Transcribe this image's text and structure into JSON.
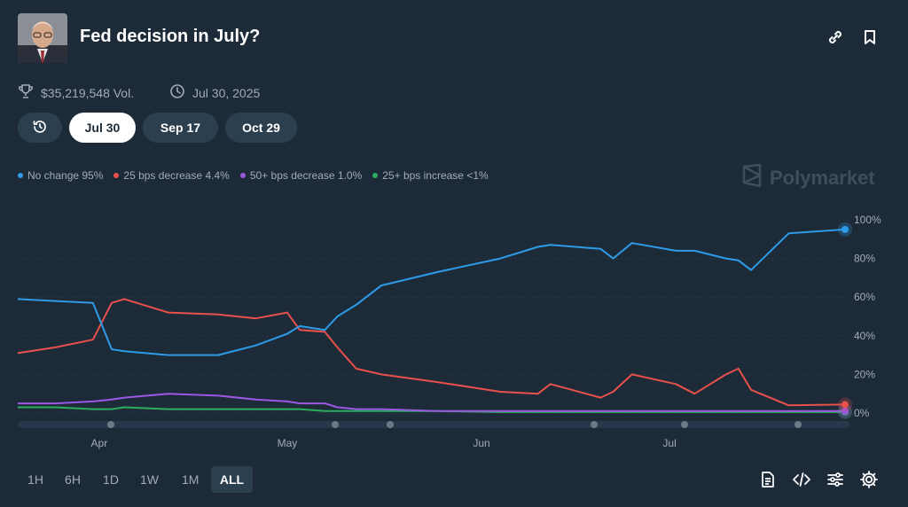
{
  "header": {
    "title": "Fed decision in July?",
    "volume": "$35,219,548 Vol.",
    "date": "Jul 30, 2025"
  },
  "date_tabs": [
    {
      "label": "Jul 30",
      "active": true
    },
    {
      "label": "Sep 17",
      "active": false
    },
    {
      "label": "Oct 29",
      "active": false
    }
  ],
  "brand": "Polymarket",
  "icons": {
    "link": "link-icon",
    "bookmark": "bookmark-icon",
    "trophy": "trophy-icon",
    "clock": "clock-icon",
    "history": "history-icon",
    "document": "document-icon",
    "embed": "code-icon",
    "filters": "sliders-icon",
    "settings": "gear-icon"
  },
  "timeframes": [
    {
      "label": "1H",
      "active": false
    },
    {
      "label": "6H",
      "active": false
    },
    {
      "label": "1D",
      "active": false
    },
    {
      "label": "1W",
      "active": false
    },
    {
      "label": "1M",
      "active": false
    },
    {
      "label": "ALL",
      "active": true
    }
  ],
  "chart_data": {
    "type": "line",
    "title": "",
    "xlabel": "",
    "ylabel": "",
    "ylim": [
      0,
      100
    ],
    "xlim": [
      "2025-03-19",
      "2025-07-29"
    ],
    "y_ticks": [
      "100%",
      "80%",
      "60%",
      "40%",
      "20%",
      "0%"
    ],
    "x_ticks": [
      "Apr",
      "May",
      "Jun",
      "Jul"
    ],
    "grid": true,
    "legend_position": "top-left",
    "x": [
      "2025-03-19",
      "2025-03-25",
      "2025-03-31",
      "2025-04-03",
      "2025-04-05",
      "2025-04-12",
      "2025-04-20",
      "2025-04-26",
      "2025-05-01",
      "2025-05-03",
      "2025-05-07",
      "2025-05-09",
      "2025-05-12",
      "2025-05-16",
      "2025-05-25",
      "2025-06-04",
      "2025-06-10",
      "2025-06-12",
      "2025-06-20",
      "2025-06-22",
      "2025-06-25",
      "2025-07-02",
      "2025-07-05",
      "2025-07-10",
      "2025-07-12",
      "2025-07-14",
      "2025-07-20",
      "2025-07-29"
    ],
    "series": [
      {
        "name": "No change",
        "label": "No change 95%",
        "color": "#2e9be8",
        "values": [
          59,
          58,
          57,
          33,
          32,
          30,
          30,
          35,
          41,
          45,
          43,
          50,
          56,
          66,
          73,
          80,
          86,
          87,
          85,
          80,
          88,
          84,
          84,
          80,
          79,
          74,
          93,
          95
        ]
      },
      {
        "name": "25 bps decrease",
        "label": "25 bps decrease 4.4%",
        "color": "#e8504c",
        "values": [
          31,
          34,
          38,
          57,
          59,
          52,
          51,
          49,
          52,
          43,
          42,
          34,
          23,
          20,
          16,
          11,
          10,
          15,
          8,
          11,
          20,
          15,
          10,
          20,
          23,
          12,
          4,
          4.4
        ]
      },
      {
        "name": "50+ bps decrease",
        "label": "50+ bps decrease 1.0%",
        "color": "#9a58e3",
        "values": [
          5,
          5,
          6,
          7,
          8,
          10,
          9,
          7,
          6,
          5,
          5,
          3,
          2,
          2,
          1,
          1,
          1,
          1,
          1,
          1,
          1,
          1,
          1,
          1,
          1,
          1,
          1,
          1.0
        ]
      },
      {
        "name": "25+ bps increase",
        "label": "25+ bps increase <1%",
        "color": "#2bad5c",
        "values": [
          3,
          3,
          2,
          2,
          3,
          2,
          2,
          2,
          2,
          2,
          1,
          1,
          1,
          1,
          1,
          0.5,
          0.5,
          0.5,
          0.5,
          0.5,
          0.5,
          0.5,
          0.5,
          0.5,
          0.5,
          0.5,
          0.5,
          0.5
        ]
      }
    ]
  }
}
